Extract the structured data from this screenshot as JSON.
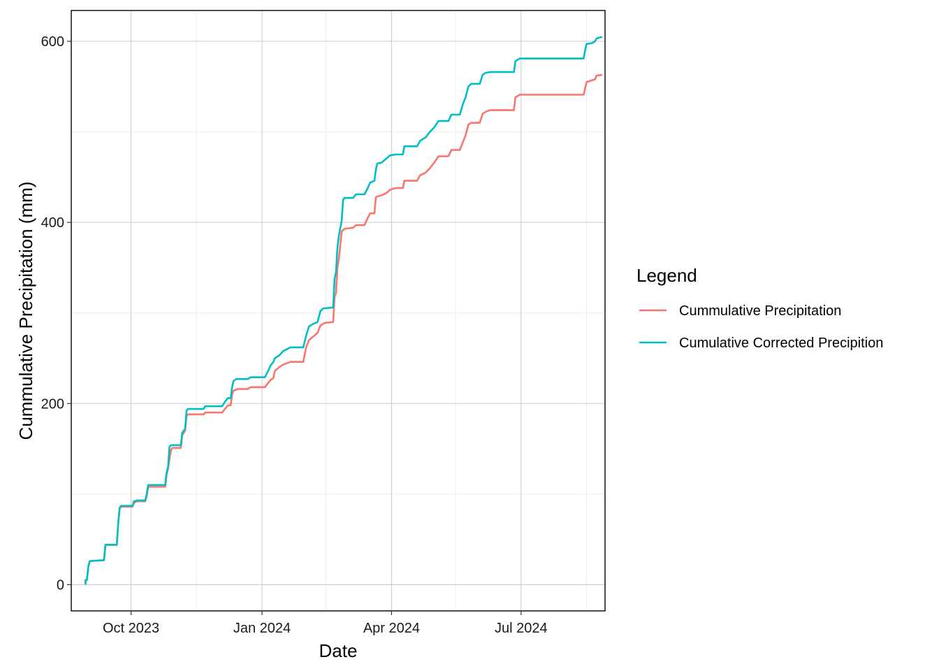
{
  "chart_data": {
    "type": "line",
    "title": "",
    "xlabel": "Date",
    "ylabel": "Cummulative Precipitation (mm)",
    "xlim": [
      "2023-08-20",
      "2024-08-29"
    ],
    "ylim": [
      -29,
      634
    ],
    "x_ticks": [
      {
        "date": "2023-10-01",
        "label": "Oct 2023"
      },
      {
        "date": "2024-01-01",
        "label": "Jan 2024"
      },
      {
        "date": "2024-04-01",
        "label": "Apr 2024"
      },
      {
        "date": "2024-07-01",
        "label": "Jul 2024"
      }
    ],
    "x_minor_ticks": [
      "2023-11-16",
      "2024-02-15",
      "2024-05-16",
      "2024-08-16"
    ],
    "y_ticks": [
      0,
      200,
      400,
      600
    ],
    "y_minor_ticks": [
      100,
      300,
      500
    ],
    "grid": true,
    "legend": {
      "title": "Legend",
      "position": "right",
      "entries": [
        "Cummulative Precipitation",
        "Cumulative Corrected Precipition"
      ]
    },
    "series": [
      {
        "name": "Cummulative Precipitation",
        "color": "#F8766D",
        "points": [
          [
            "2023-08-30",
            0
          ],
          [
            "2023-08-30",
            5
          ],
          [
            "2023-08-31",
            5
          ],
          [
            "2023-09-01",
            20
          ],
          [
            "2023-09-02",
            26
          ],
          [
            "2023-09-12",
            27
          ],
          [
            "2023-09-13",
            44
          ],
          [
            "2023-09-21",
            44
          ],
          [
            "2023-09-22",
            68
          ],
          [
            "2023-09-23",
            84
          ],
          [
            "2023-09-24",
            86
          ],
          [
            "2023-10-02",
            86
          ],
          [
            "2023-10-03",
            90
          ],
          [
            "2023-10-05",
            92
          ],
          [
            "2023-10-11",
            92
          ],
          [
            "2023-10-12",
            98
          ],
          [
            "2023-10-13",
            108
          ],
          [
            "2023-10-25",
            108
          ],
          [
            "2023-10-26",
            122
          ],
          [
            "2023-10-27",
            128
          ],
          [
            "2023-10-29",
            148
          ],
          [
            "2023-10-30",
            151
          ],
          [
            "2023-11-05",
            151
          ],
          [
            "2023-11-06",
            165
          ],
          [
            "2023-11-08",
            170
          ],
          [
            "2023-11-09",
            186
          ],
          [
            "2023-11-10",
            188
          ],
          [
            "2023-11-21",
            188
          ],
          [
            "2023-11-22",
            190
          ],
          [
            "2023-12-04",
            190
          ],
          [
            "2023-12-06",
            194
          ],
          [
            "2023-12-08",
            198
          ],
          [
            "2023-12-10",
            198
          ],
          [
            "2023-12-11",
            210
          ],
          [
            "2023-12-12",
            214
          ],
          [
            "2023-12-15",
            216
          ],
          [
            "2023-12-22",
            216
          ],
          [
            "2023-12-24",
            218
          ],
          [
            "2024-01-03",
            218
          ],
          [
            "2024-01-05",
            222
          ],
          [
            "2024-01-07",
            226
          ],
          [
            "2024-01-09",
            228
          ],
          [
            "2024-01-10",
            236
          ],
          [
            "2024-01-13",
            240
          ],
          [
            "2024-01-16",
            243
          ],
          [
            "2024-01-21",
            246
          ],
          [
            "2024-01-30",
            246
          ],
          [
            "2024-02-01",
            262
          ],
          [
            "2024-02-03",
            270
          ],
          [
            "2024-02-06",
            274
          ],
          [
            "2024-02-09",
            278
          ],
          [
            "2024-02-11",
            286
          ],
          [
            "2024-02-14",
            289
          ],
          [
            "2024-02-20",
            290
          ],
          [
            "2024-02-21",
            318
          ],
          [
            "2024-02-22",
            322
          ],
          [
            "2024-02-23",
            350
          ],
          [
            "2024-02-24",
            360
          ],
          [
            "2024-02-26",
            390
          ],
          [
            "2024-02-28",
            393
          ],
          [
            "2024-03-05",
            394
          ],
          [
            "2024-03-07",
            397
          ],
          [
            "2024-03-13",
            397
          ],
          [
            "2024-03-15",
            404
          ],
          [
            "2024-03-17",
            410
          ],
          [
            "2024-03-20",
            410
          ],
          [
            "2024-03-21",
            428
          ],
          [
            "2024-03-25",
            430
          ],
          [
            "2024-03-28",
            432
          ],
          [
            "2024-03-31",
            436
          ],
          [
            "2024-04-04",
            438
          ],
          [
            "2024-04-09",
            438
          ],
          [
            "2024-04-10",
            446
          ],
          [
            "2024-04-19",
            446
          ],
          [
            "2024-04-21",
            452
          ],
          [
            "2024-04-25",
            455
          ],
          [
            "2024-04-28",
            460
          ],
          [
            "2024-05-01",
            466
          ],
          [
            "2024-05-04",
            473
          ],
          [
            "2024-05-11",
            473
          ],
          [
            "2024-05-13",
            480
          ],
          [
            "2024-05-19",
            480
          ],
          [
            "2024-05-21",
            488
          ],
          [
            "2024-05-23",
            496
          ],
          [
            "2024-05-25",
            508
          ],
          [
            "2024-05-27",
            510
          ],
          [
            "2024-06-02",
            510
          ],
          [
            "2024-06-04",
            520
          ],
          [
            "2024-06-06",
            522
          ],
          [
            "2024-06-09",
            524
          ],
          [
            "2024-06-26",
            524
          ],
          [
            "2024-06-27",
            538
          ],
          [
            "2024-06-30",
            541
          ],
          [
            "2024-08-14",
            541
          ],
          [
            "2024-08-15",
            548
          ],
          [
            "2024-08-16",
            555
          ],
          [
            "2024-08-20",
            557
          ],
          [
            "2024-08-22",
            558
          ],
          [
            "2024-08-23",
            562
          ],
          [
            "2024-08-27",
            563
          ]
        ]
      },
      {
        "name": "Cumulative Corrected Precipition",
        "color": "#00BFC4",
        "points": [
          [
            "2023-08-30",
            0
          ],
          [
            "2023-08-30",
            5
          ],
          [
            "2023-08-31",
            5
          ],
          [
            "2023-09-01",
            20
          ],
          [
            "2023-09-02",
            26
          ],
          [
            "2023-09-12",
            27
          ],
          [
            "2023-09-13",
            44
          ],
          [
            "2023-09-21",
            44
          ],
          [
            "2023-09-22",
            68
          ],
          [
            "2023-09-23",
            85
          ],
          [
            "2023-09-24",
            87
          ],
          [
            "2023-10-02",
            87
          ],
          [
            "2023-10-03",
            92
          ],
          [
            "2023-10-05",
            93
          ],
          [
            "2023-10-11",
            93
          ],
          [
            "2023-10-12",
            100
          ],
          [
            "2023-10-13",
            110
          ],
          [
            "2023-10-25",
            110
          ],
          [
            "2023-10-26",
            124
          ],
          [
            "2023-10-27",
            130
          ],
          [
            "2023-10-28",
            152
          ],
          [
            "2023-10-29",
            154
          ],
          [
            "2023-11-05",
            154
          ],
          [
            "2023-11-06",
            168
          ],
          [
            "2023-11-08",
            172
          ],
          [
            "2023-11-09",
            192
          ],
          [
            "2023-11-10",
            194
          ],
          [
            "2023-11-21",
            194
          ],
          [
            "2023-11-22",
            197
          ],
          [
            "2023-12-04",
            197
          ],
          [
            "2023-12-06",
            202
          ],
          [
            "2023-12-08",
            206
          ],
          [
            "2023-12-10",
            206
          ],
          [
            "2023-12-11",
            218
          ],
          [
            "2023-12-12",
            225
          ],
          [
            "2023-12-14",
            227
          ],
          [
            "2023-12-22",
            227
          ],
          [
            "2023-12-24",
            229
          ],
          [
            "2024-01-03",
            229
          ],
          [
            "2024-01-05",
            235
          ],
          [
            "2024-01-07",
            242
          ],
          [
            "2024-01-09",
            246
          ],
          [
            "2024-01-10",
            250
          ],
          [
            "2024-01-13",
            253
          ],
          [
            "2024-01-16",
            258
          ],
          [
            "2024-01-21",
            262
          ],
          [
            "2024-01-30",
            262
          ],
          [
            "2024-02-01",
            275
          ],
          [
            "2024-02-03",
            285
          ],
          [
            "2024-02-06",
            288
          ],
          [
            "2024-02-09",
            290
          ],
          [
            "2024-02-11",
            302
          ],
          [
            "2024-02-13",
            305
          ],
          [
            "2024-02-20",
            306
          ],
          [
            "2024-02-21",
            338
          ],
          [
            "2024-02-22",
            345
          ],
          [
            "2024-02-23",
            372
          ],
          [
            "2024-02-24",
            385
          ],
          [
            "2024-02-26",
            402
          ],
          [
            "2024-02-27",
            425
          ],
          [
            "2024-02-28",
            427
          ],
          [
            "2024-03-05",
            427
          ],
          [
            "2024-03-07",
            431
          ],
          [
            "2024-03-13",
            431
          ],
          [
            "2024-03-15",
            437
          ],
          [
            "2024-03-17",
            444
          ],
          [
            "2024-03-20",
            446
          ],
          [
            "2024-03-21",
            458
          ],
          [
            "2024-03-22",
            465
          ],
          [
            "2024-03-25",
            466
          ],
          [
            "2024-03-28",
            470
          ],
          [
            "2024-03-31",
            474
          ],
          [
            "2024-04-04",
            475
          ],
          [
            "2024-04-09",
            475
          ],
          [
            "2024-04-10",
            484
          ],
          [
            "2024-04-19",
            484
          ],
          [
            "2024-04-21",
            490
          ],
          [
            "2024-04-25",
            494
          ],
          [
            "2024-04-28",
            500
          ],
          [
            "2024-05-01",
            505
          ],
          [
            "2024-05-04",
            512
          ],
          [
            "2024-05-11",
            512
          ],
          [
            "2024-05-13",
            519
          ],
          [
            "2024-05-19",
            519
          ],
          [
            "2024-05-21",
            530
          ],
          [
            "2024-05-23",
            538
          ],
          [
            "2024-05-25",
            550
          ],
          [
            "2024-05-27",
            553
          ],
          [
            "2024-06-02",
            553
          ],
          [
            "2024-06-04",
            563
          ],
          [
            "2024-06-06",
            565
          ],
          [
            "2024-06-09",
            566
          ],
          [
            "2024-06-26",
            566
          ],
          [
            "2024-06-27",
            578
          ],
          [
            "2024-06-30",
            581
          ],
          [
            "2024-08-14",
            581
          ],
          [
            "2024-08-15",
            590
          ],
          [
            "2024-08-16",
            597
          ],
          [
            "2024-08-20",
            598
          ],
          [
            "2024-08-22",
            600
          ],
          [
            "2024-08-23",
            603
          ],
          [
            "2024-08-27",
            605
          ]
        ]
      }
    ]
  }
}
